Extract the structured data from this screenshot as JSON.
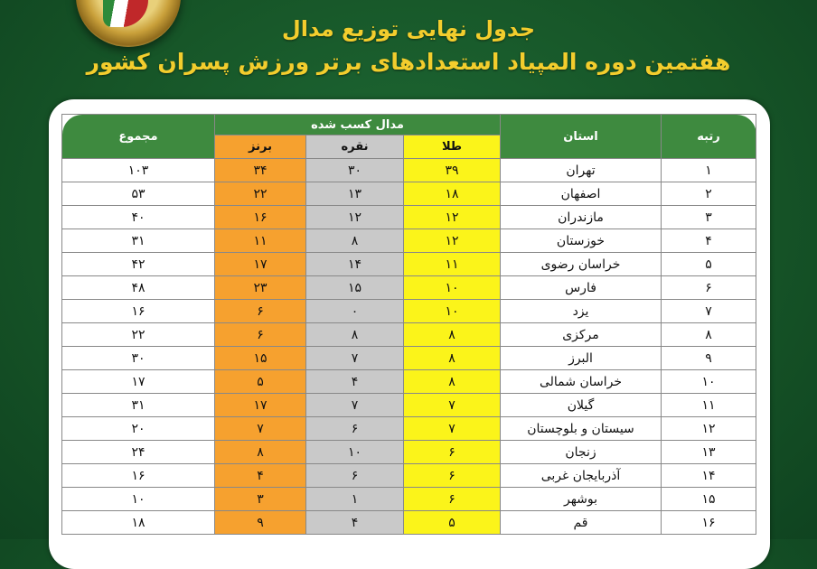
{
  "title": "جدول نهایی توزیع مدال",
  "subtitle": "هفتمین دوره المپیاد استعدادهای برتر ورزش پسران کشور",
  "headers": {
    "rank": "رتبه",
    "province": "استان",
    "medals": "مدال کسب شده",
    "gold": "طلا",
    "silver": "نقره",
    "bronze": "برنز",
    "total": "مجموع"
  },
  "colors": {
    "gold": "#fbf41a",
    "silver": "#c9c9c9",
    "bronze": "#f6a12f",
    "header": "#3e8a3f",
    "background": "#165427"
  },
  "rows": [
    {
      "rank": "۱",
      "province": "تهران",
      "gold": "۳۹",
      "silver": "۳۰",
      "bronze": "۳۴",
      "total": "۱۰۳"
    },
    {
      "rank": "۲",
      "province": "اصفهان",
      "gold": "۱۸",
      "silver": "۱۳",
      "bronze": "۲۲",
      "total": "۵۳"
    },
    {
      "rank": "۳",
      "province": "مازندران",
      "gold": "۱۲",
      "silver": "۱۲",
      "bronze": "۱۶",
      "total": "۴۰"
    },
    {
      "rank": "۴",
      "province": "خوزستان",
      "gold": "۱۲",
      "silver": "۸",
      "bronze": "۱۱",
      "total": "۳۱"
    },
    {
      "rank": "۵",
      "province": "خراسان رضوی",
      "gold": "۱۱",
      "silver": "۱۴",
      "bronze": "۱۷",
      "total": "۴۲"
    },
    {
      "rank": "۶",
      "province": "فارس",
      "gold": "۱۰",
      "silver": "۱۵",
      "bronze": "۲۳",
      "total": "۴۸"
    },
    {
      "rank": "۷",
      "province": "یزد",
      "gold": "۱۰",
      "silver": "۰",
      "bronze": "۶",
      "total": "۱۶"
    },
    {
      "rank": "۸",
      "province": "مرکزی",
      "gold": "۸",
      "silver": "۸",
      "bronze": "۶",
      "total": "۲۲"
    },
    {
      "rank": "۹",
      "province": "البرز",
      "gold": "۸",
      "silver": "۷",
      "bronze": "۱۵",
      "total": "۳۰"
    },
    {
      "rank": "۱۰",
      "province": "خراسان شمالی",
      "gold": "۸",
      "silver": "۴",
      "bronze": "۵",
      "total": "۱۷"
    },
    {
      "rank": "۱۱",
      "province": "گیلان",
      "gold": "۷",
      "silver": "۷",
      "bronze": "۱۷",
      "total": "۳۱"
    },
    {
      "rank": "۱۲",
      "province": "سیستان و بلوچستان",
      "gold": "۷",
      "silver": "۶",
      "bronze": "۷",
      "total": "۲۰"
    },
    {
      "rank": "۱۳",
      "province": "زنجان",
      "gold": "۶",
      "silver": "۱۰",
      "bronze": "۸",
      "total": "۲۴"
    },
    {
      "rank": "۱۴",
      "province": "آذربایجان غربی",
      "gold": "۶",
      "silver": "۶",
      "bronze": "۴",
      "total": "۱۶"
    },
    {
      "rank": "۱۵",
      "province": "بوشهر",
      "gold": "۶",
      "silver": "۱",
      "bronze": "۳",
      "total": "۱۰"
    },
    {
      "rank": "۱۶",
      "province": "قم",
      "gold": "۵",
      "silver": "۴",
      "bronze": "۹",
      "total": "۱۸"
    }
  ]
}
